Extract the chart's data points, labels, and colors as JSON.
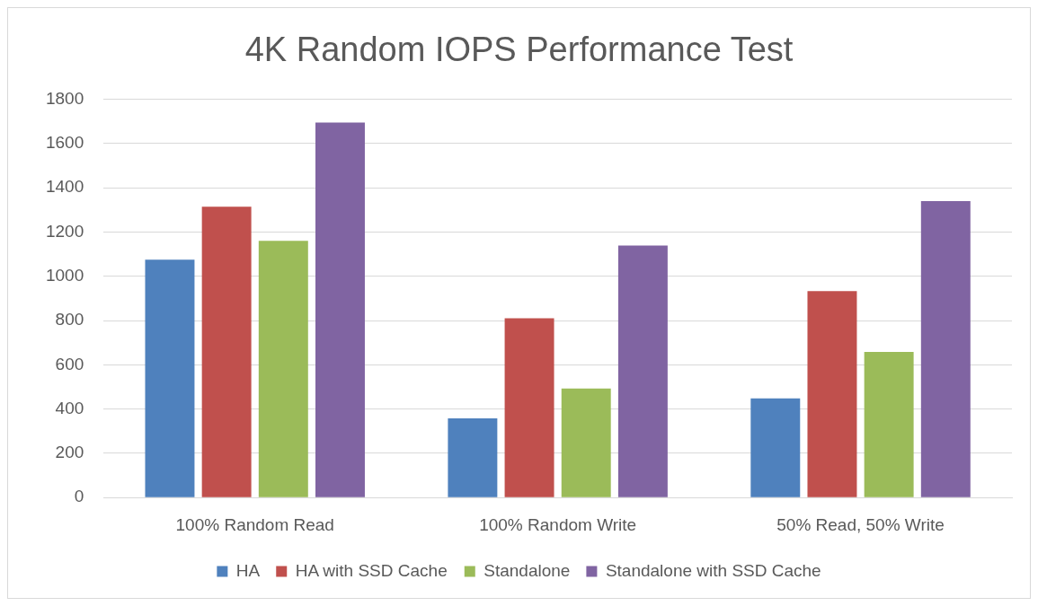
{
  "chart_data": {
    "type": "bar",
    "title": "4K Random IOPS Performance Test",
    "categories": [
      "100% Random Read",
      "100% Random Write",
      "50% Read, 50% Write"
    ],
    "series": [
      {
        "name": "HA",
        "color": "#4f81bd",
        "values": [
          1075,
          358,
          448
        ]
      },
      {
        "name": "HA with SSD Cache",
        "color": "#c0504d",
        "values": [
          1315,
          810,
          933
        ]
      },
      {
        "name": "Standalone",
        "color": "#9bbb59",
        "values": [
          1160,
          493,
          658
        ]
      },
      {
        "name": "Standalone with SSD Cache",
        "color": "#8064a2",
        "values": [
          1695,
          1139,
          1340
        ]
      }
    ],
    "ylim": [
      0,
      1800
    ],
    "yticks": [
      0,
      200,
      400,
      600,
      800,
      1000,
      1200,
      1400,
      1600,
      1800
    ],
    "grid": "y",
    "legend": "bottom"
  }
}
